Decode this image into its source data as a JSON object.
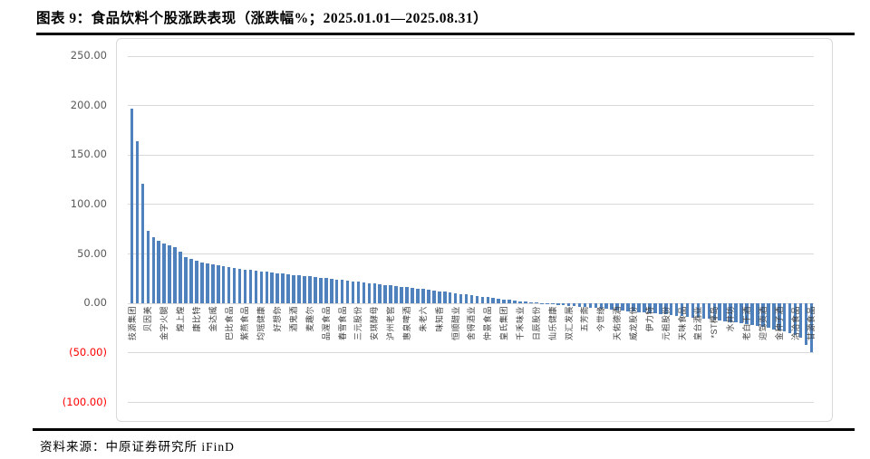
{
  "header": {
    "title": "图表 9：食品饮料个股涨跌表现（涨跌幅%；2025.01.01—2025.08.31）"
  },
  "footer": {
    "source": "资料来源：中原证券研究所 iFinD"
  },
  "chart_data": {
    "type": "bar",
    "title": "食品饮料个股涨跌表现（涨跌幅%；2025.01.01—2025.08.31）",
    "unit": "%",
    "ylim": [
      -100,
      250
    ],
    "grid": true,
    "legend": "none",
    "bar_color": "#4f81bd",
    "tick_color": "#595959",
    "negative_tick_color": "#ff0000",
    "yticks": [
      {
        "label": "250.00",
        "value": 250
      },
      {
        "label": "200.00",
        "value": 200
      },
      {
        "label": "150.00",
        "value": 150
      },
      {
        "label": "100.00",
        "value": 100
      },
      {
        "label": "50.00",
        "value": 50
      },
      {
        "label": "0.00",
        "value": 0
      },
      {
        "label": "(50.00)",
        "value": -50
      },
      {
        "label": "(100.00)",
        "value": -100
      }
    ],
    "label_interval": 3,
    "category_labels": [
      "技源集团",
      "贝因美",
      "金字火腿",
      "煌上煌",
      "康比特",
      "金达威",
      "巴比食品",
      "紫燕食品",
      "均瑶健康",
      "好想你",
      "酒鬼酒",
      "麦趣尔",
      "品渥食品",
      "春雪食品",
      "三元股份",
      "安琪酵母",
      "泸州老窖",
      "惠泉啤酒",
      "朱老六",
      "味知香",
      "恒顺醋业",
      "舍得酒业",
      "仲景食品",
      "皇氏集团",
      "千禾味业",
      "日辰股份",
      "仙乐健康",
      "双汇发展",
      "五芳斋",
      "今世缘",
      "天佑德酒",
      "威龙股份",
      "伊力特",
      "元祖股份",
      "天味食品",
      "皇台酒业",
      "*ST椰岛",
      "水井坊",
      "老白干酒",
      "迎驾贡酒",
      "金种子酒",
      "洽洽食品",
      "甘源食品"
    ],
    "values": [
      196.9,
      164.0,
      121.0,
      73.0,
      67.0,
      63.0,
      60.5,
      58.6,
      56.9,
      52.4,
      47.3,
      45.2,
      43.6,
      41.8,
      40.3,
      39.1,
      38.2,
      37.4,
      36.6,
      35.9,
      35.1,
      34.4,
      33.8,
      33.1,
      32.5,
      31.9,
      31.4,
      30.8,
      30.2,
      29.6,
      29.0,
      28.4,
      27.8,
      27.2,
      26.6,
      26.0,
      25.4,
      24.8,
      24.2,
      23.6,
      23.0,
      22.4,
      21.8,
      21.2,
      20.6,
      20.0,
      19.4,
      18.8,
      18.2,
      17.6,
      17.0,
      16.4,
      15.8,
      15.2,
      14.6,
      13.9,
      13.2,
      12.5,
      11.8,
      11.1,
      10.4,
      9.7,
      9.0,
      8.3,
      7.6,
      6.9,
      6.2,
      5.5,
      4.8,
      4.2,
      3.6,
      3.0,
      2.4,
      1.8,
      1.2,
      0.7,
      0.3,
      -0.3,
      -0.7,
      -1.2,
      -1.7,
      -2.2,
      -2.7,
      -3.2,
      -3.7,
      -4.2,
      -4.7,
      -5.2,
      -5.7,
      -6.2,
      -6.7,
      -7.2,
      -7.7,
      -8.2,
      -8.7,
      -9.2,
      -9.7,
      -10.2,
      -10.7,
      -11.2,
      -11.7,
      -12.2,
      -12.8,
      -13.4,
      -14.0,
      -14.6,
      -15.2,
      -15.8,
      -16.5,
      -17.2,
      -17.9,
      -18.6,
      -19.4,
      -20.2,
      -21.0,
      -21.9,
      -22.8,
      -23.8,
      -24.8,
      -25.9,
      -27.1,
      -28.4,
      -30.0,
      -32.0,
      -35.0,
      -42.0,
      -48.8
    ]
  }
}
